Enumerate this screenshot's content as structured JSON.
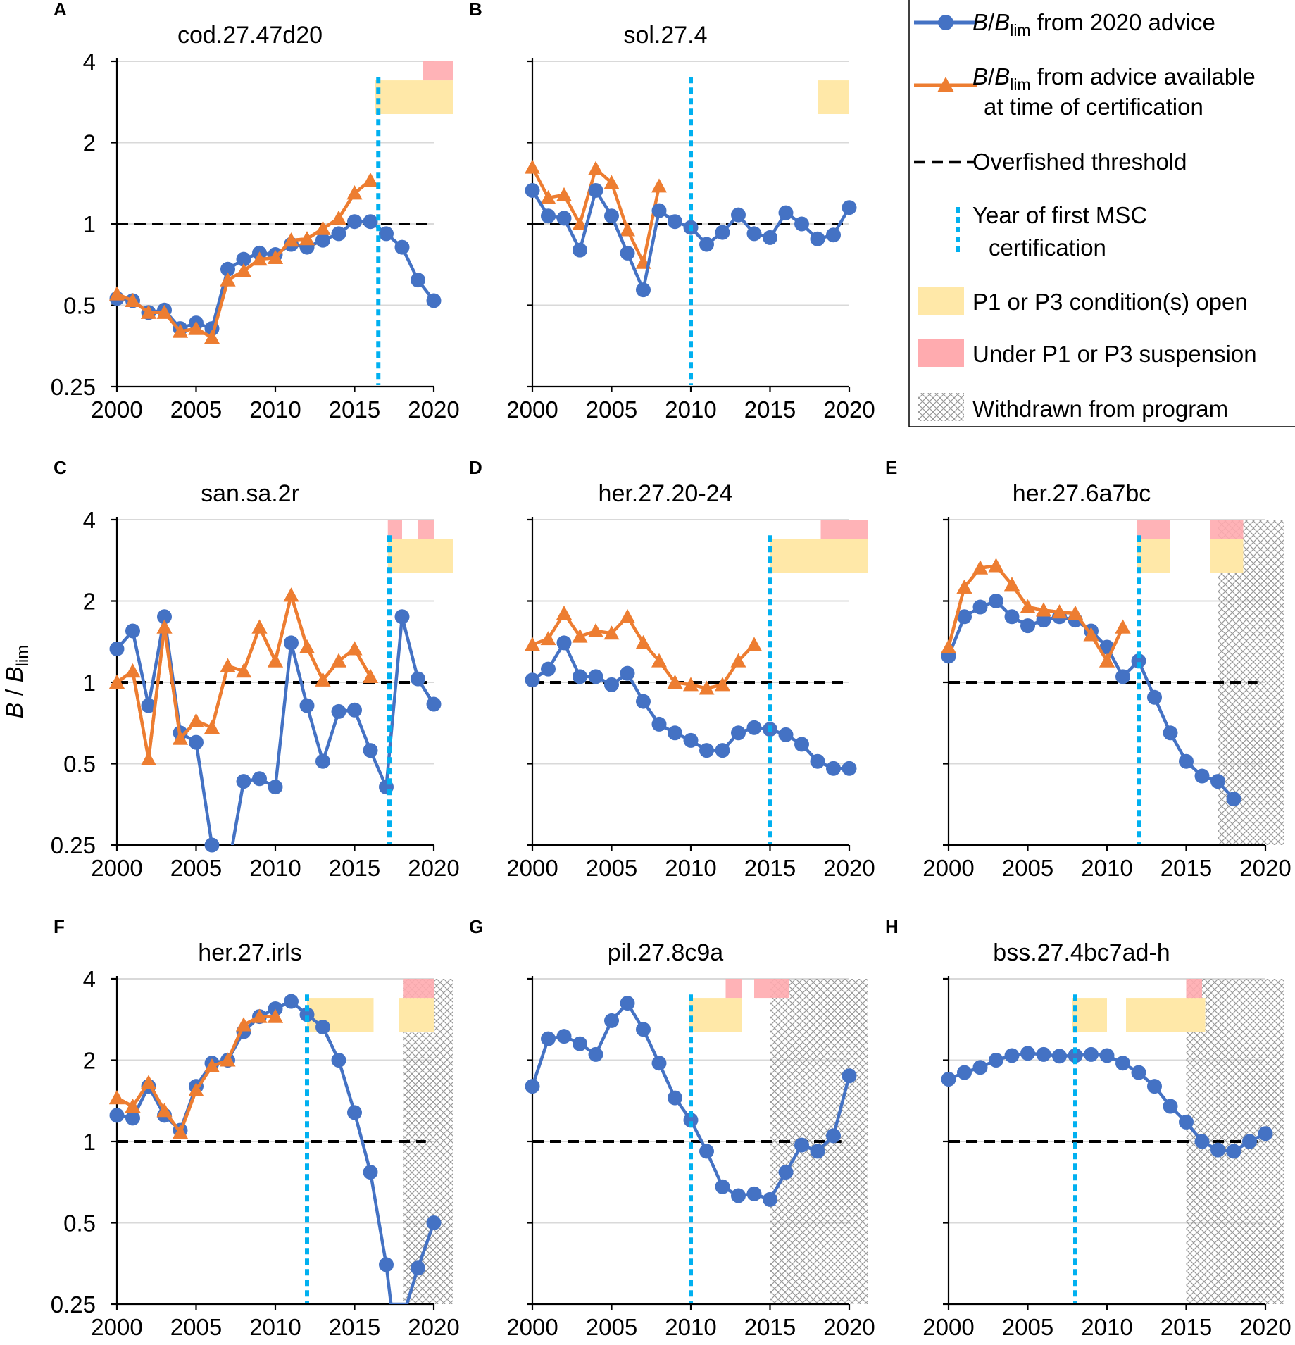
{
  "figure": {
    "y_axis_label_main": "B",
    "y_axis_label_sep": " / ",
    "y_axis_label_b": "B",
    "y_axis_label_sub": "lim"
  },
  "colors": {
    "series_2020": "#4472C4",
    "series_cert": "#ED7D31",
    "threshold": "#000000",
    "cert_year": "#00B0F0",
    "p1p3_open": "#FFE8A8",
    "suspension": "#FFABAF",
    "withdrawn": "#9A9A9A",
    "grid": "#D9D9D9"
  },
  "legend": {
    "item1": {
      "b": "B",
      "sep": "/",
      "b2": "B",
      "sub": "lim",
      "rest": " from 2020 advice"
    },
    "item2": {
      "b": "B",
      "sep": "/",
      "b2": "B",
      "sub": "lim",
      "rest": " from advice available",
      "line2": "at time of certification"
    },
    "item3": {
      "label": "Overfished threshold"
    },
    "item4": {
      "line1": "Year of first MSC",
      "line2": "certification"
    },
    "item5": {
      "label": "P1 or P3 condition(s) open"
    },
    "item6": {
      "label": "Under P1 or P3 suspension"
    },
    "item7": {
      "label": "Withdrawn from program"
    }
  },
  "chart_data": [
    {
      "type": "line",
      "letter": "A",
      "title": "cod.27.47d20",
      "xlim": [
        2000,
        2020
      ],
      "ylim": [
        0.25,
        4
      ],
      "yscale": "log2",
      "xticks": [
        "2000",
        "2005",
        "2010",
        "2015",
        "2020"
      ],
      "yticks": [
        "0.25",
        "0.5",
        "1",
        "2",
        "4"
      ],
      "show_ytick_labels": true,
      "threshold": 1,
      "threshold_x": [
        2000,
        2020
      ],
      "cert_year": 2016.5,
      "series": [
        {
          "name": "B/Blim from 2020 advice",
          "x": [
            2000,
            2001,
            2002,
            2003,
            2004,
            2005,
            2006,
            2007,
            2008,
            2009,
            2010,
            2011,
            2012,
            2013,
            2014,
            2015,
            2016,
            2017,
            2018,
            2019,
            2020
          ],
          "values": [
            0.53,
            0.52,
            0.47,
            0.48,
            0.41,
            0.43,
            0.41,
            0.68,
            0.74,
            0.78,
            0.77,
            0.84,
            0.82,
            0.87,
            0.92,
            1.02,
            1.02,
            0.92,
            0.82,
            0.62,
            0.52
          ]
        },
        {
          "name": "B/Blim from advice available at time of certification",
          "x": [
            2000,
            2001,
            2002,
            2003,
            2004,
            2005,
            2006,
            2007,
            2008,
            2009,
            2010,
            2011,
            2012,
            2013,
            2014,
            2015,
            2016
          ],
          "values": [
            0.55,
            0.52,
            0.47,
            0.47,
            0.4,
            0.41,
            0.38,
            0.62,
            0.67,
            0.74,
            0.75,
            0.87,
            0.88,
            0.96,
            1.05,
            1.3,
            1.45
          ]
        }
      ],
      "conditions": [
        [
          2016.3,
          2021.2
        ]
      ],
      "suspensions": [
        [
          2019.3,
          2021.2
        ]
      ],
      "withdrawn": []
    },
    {
      "type": "line",
      "letter": "B",
      "title": "sol.27.4",
      "xlim": [
        2000,
        2020
      ],
      "ylim": [
        0.25,
        4
      ],
      "yscale": "log2",
      "xticks": [
        "2000",
        "2005",
        "2010",
        "2015",
        "2020"
      ],
      "yticks": [
        "0.25",
        "0.5",
        "1",
        "2",
        "4"
      ],
      "show_ytick_labels": false,
      "threshold": 1,
      "threshold_x": [
        2000,
        2020
      ],
      "cert_year": 2010,
      "series": [
        {
          "name": "B/Blim from 2020 advice",
          "x": [
            2000,
            2001,
            2002,
            2003,
            2004,
            2005,
            2006,
            2007,
            2008,
            2009,
            2010,
            2011,
            2012,
            2013,
            2014,
            2015,
            2016,
            2017,
            2018,
            2019,
            2020
          ],
          "values": [
            1.33,
            1.07,
            1.05,
            0.8,
            1.33,
            1.07,
            0.78,
            0.57,
            1.12,
            1.02,
            0.97,
            0.84,
            0.93,
            1.08,
            0.92,
            0.89,
            1.1,
            1.0,
            0.88,
            0.91,
            1.15
          ]
        },
        {
          "name": "B/Blim from advice available at time of certification",
          "x": [
            2000,
            2001,
            2002,
            2003,
            2004,
            2005,
            2006,
            2007,
            2008
          ],
          "values": [
            1.62,
            1.25,
            1.28,
            1.0,
            1.6,
            1.42,
            0.95,
            0.72,
            1.38
          ]
        }
      ],
      "conditions": [
        [
          2018,
          2020
        ]
      ],
      "suspensions": [],
      "withdrawn": []
    },
    {
      "type": "line",
      "letter": "C",
      "title": "san.sa.2r",
      "xlim": [
        2000,
        2020
      ],
      "ylim": [
        0.25,
        4
      ],
      "yscale": "log2",
      "xticks": [
        "2000",
        "2005",
        "2010",
        "2015",
        "2020"
      ],
      "yticks": [
        "0.25",
        "0.5",
        "1",
        "2",
        "4"
      ],
      "show_ytick_labels": true,
      "threshold": 1,
      "threshold_x": [
        2000,
        2020
      ],
      "cert_year": 2017.2,
      "series": [
        {
          "name": "B/Blim from 2020 advice",
          "x": [
            2000,
            2001,
            2002,
            2003,
            2004,
            2005,
            2006,
            2007,
            2008,
            2009,
            2010,
            2011,
            2012,
            2013,
            2014,
            2015,
            2016,
            2017,
            2018,
            2019,
            2020
          ],
          "values": [
            1.33,
            1.55,
            0.82,
            1.75,
            0.65,
            0.6,
            0.25,
            0.2,
            0.43,
            0.44,
            0.41,
            1.4,
            0.82,
            0.51,
            0.78,
            0.79,
            0.56,
            0.41,
            1.75,
            1.03,
            0.83
          ]
        },
        {
          "name": "B/Blim from advice available at time of certification",
          "x": [
            2000,
            2001,
            2002,
            2003,
            2004,
            2005,
            2006,
            2007,
            2008,
            2009,
            2010,
            2011,
            2012,
            2013,
            2014,
            2015,
            2016
          ],
          "values": [
            1.0,
            1.1,
            0.52,
            1.6,
            0.62,
            0.72,
            0.68,
            1.15,
            1.1,
            1.6,
            1.2,
            2.1,
            1.35,
            1.02,
            1.2,
            1.33,
            1.05
          ]
        }
      ],
      "conditions": [
        [
          2017.1,
          2021.2
        ]
      ],
      "suspensions": [
        [
          2017.1,
          2018
        ],
        [
          2019,
          2020
        ]
      ],
      "withdrawn": []
    },
    {
      "type": "line",
      "letter": "D",
      "title": "her.27.20-24",
      "xlim": [
        2000,
        2020
      ],
      "ylim": [
        0.25,
        4
      ],
      "yscale": "log2",
      "xticks": [
        "2000",
        "2005",
        "2010",
        "2015",
        "2020"
      ],
      "yticks": [
        "0.25",
        "0.5",
        "1",
        "2",
        "4"
      ],
      "show_ytick_labels": false,
      "threshold": 1,
      "threshold_x": [
        2000,
        2020
      ],
      "cert_year": 2015,
      "series": [
        {
          "name": "B/Blim from 2020 advice",
          "x": [
            2000,
            2001,
            2002,
            2003,
            2004,
            2005,
            2006,
            2007,
            2008,
            2009,
            2010,
            2011,
            2012,
            2013,
            2014,
            2015,
            2016,
            2017,
            2018,
            2019,
            2020
          ],
          "values": [
            1.02,
            1.12,
            1.4,
            1.05,
            1.05,
            0.98,
            1.08,
            0.85,
            0.7,
            0.65,
            0.61,
            0.56,
            0.56,
            0.65,
            0.68,
            0.67,
            0.64,
            0.59,
            0.51,
            0.48,
            0.48
          ]
        },
        {
          "name": "B/Blim from advice available at time of certification",
          "x": [
            2000,
            2001,
            2002,
            2003,
            2004,
            2005,
            2006,
            2007,
            2008,
            2009,
            2010,
            2011,
            2012,
            2013,
            2014
          ],
          "values": [
            1.38,
            1.45,
            1.8,
            1.48,
            1.55,
            1.52,
            1.75,
            1.4,
            1.2,
            1.0,
            0.98,
            0.95,
            0.98,
            1.2,
            1.38
          ]
        }
      ],
      "conditions": [
        [
          2015,
          2021.2
        ]
      ],
      "suspensions": [
        [
          2018.2,
          2021.2
        ]
      ],
      "withdrawn": []
    },
    {
      "type": "line",
      "letter": "E",
      "title": "her.27.6a7bc",
      "xlim": [
        2000,
        2020
      ],
      "ylim": [
        0.25,
        4
      ],
      "yscale": "log2",
      "xticks": [
        "2000",
        "2005",
        "2010",
        "2015",
        "2020"
      ],
      "yticks": [
        "0.25",
        "0.5",
        "1",
        "2",
        "4"
      ],
      "show_ytick_labels": false,
      "threshold": 1,
      "threshold_x": [
        2000,
        2019.5
      ],
      "cert_year": 2012,
      "series": [
        {
          "name": "B/Blim from 2020 advice",
          "x": [
            2000,
            2001,
            2002,
            2003,
            2004,
            2005,
            2006,
            2007,
            2008,
            2009,
            2010,
            2011,
            2012,
            2013,
            2014,
            2015,
            2016,
            2017,
            2018
          ],
          "values": [
            1.25,
            1.75,
            1.9,
            2.0,
            1.75,
            1.62,
            1.7,
            1.75,
            1.7,
            1.55,
            1.35,
            1.05,
            1.2,
            0.88,
            0.65,
            0.51,
            0.45,
            0.43,
            0.37
          ]
        },
        {
          "name": "B/Blim from advice available at time of certification",
          "x": [
            2000,
            2001,
            2002,
            2003,
            2004,
            2005,
            2006,
            2007,
            2008,
            2009,
            2010,
            2011
          ],
          "values": [
            1.35,
            2.25,
            2.65,
            2.7,
            2.3,
            1.9,
            1.85,
            1.82,
            1.8,
            1.5,
            1.2,
            1.6
          ]
        }
      ],
      "conditions": [
        [
          2011.9,
          2014
        ],
        [
          2016.5,
          2018.6
        ]
      ],
      "suspensions": [
        [
          2011.9,
          2014
        ],
        [
          2016.5,
          2018.6
        ]
      ],
      "withdrawn": [
        [
          2017,
          2021.2
        ]
      ]
    },
    {
      "type": "line",
      "letter": "F",
      "title": "her.27.irls",
      "xlim": [
        2000,
        2020
      ],
      "ylim": [
        0.25,
        4
      ],
      "yscale": "log2",
      "xticks": [
        "2000",
        "2005",
        "2010",
        "2015",
        "2020"
      ],
      "yticks": [
        "0.25",
        "0.5",
        "1",
        "2",
        "4"
      ],
      "show_ytick_labels": true,
      "threshold": 1,
      "threshold_x": [
        2000,
        2019.5
      ],
      "cert_year": 2012,
      "series": [
        {
          "name": "B/Blim from 2020 advice",
          "x": [
            2000,
            2001,
            2002,
            2003,
            2004,
            2005,
            2006,
            2007,
            2008,
            2009,
            2010,
            2011,
            2012,
            2013,
            2014,
            2015,
            2016,
            2017,
            2017.3,
            2018.3,
            2019,
            2020
          ],
          "values": [
            1.25,
            1.22,
            1.6,
            1.25,
            1.1,
            1.6,
            1.95,
            2.0,
            2.55,
            2.9,
            3.1,
            3.3,
            2.95,
            2.65,
            2.0,
            1.28,
            0.77,
            0.35,
            0.25,
            0.25,
            0.34,
            0.5
          ]
        },
        {
          "name": "B/Blim from advice available at time of certification",
          "x": [
            2000,
            2001,
            2002,
            2003,
            2004,
            2005,
            2006,
            2007,
            2008,
            2009,
            2010
          ],
          "values": [
            1.45,
            1.35,
            1.65,
            1.3,
            1.08,
            1.55,
            1.9,
            2.0,
            2.7,
            2.9,
            2.9
          ]
        }
      ],
      "conditions": [
        [
          2012,
          2016.2
        ],
        [
          2017.8,
          2020
        ]
      ],
      "suspensions": [
        [
          2018.1,
          2020
        ]
      ],
      "withdrawn": [
        [
          2018.1,
          2021.2
        ]
      ]
    },
    {
      "type": "line",
      "letter": "G",
      "title": "pil.27.8c9a",
      "xlim": [
        2000,
        2020
      ],
      "ylim": [
        0.25,
        4
      ],
      "yscale": "log2",
      "xticks": [
        "2000",
        "2005",
        "2010",
        "2015",
        "2020"
      ],
      "yticks": [
        "0.25",
        "0.5",
        "1",
        "2",
        "4"
      ],
      "show_ytick_labels": false,
      "threshold": 1,
      "threshold_x": [
        2000,
        2019.5
      ],
      "cert_year": 2010,
      "series": [
        {
          "name": "B/Blim from 2020 advice",
          "x": [
            2000,
            2001,
            2002,
            2003,
            2004,
            2005,
            2006,
            2007,
            2008,
            2009,
            2010,
            2011,
            2012,
            2013,
            2014,
            2015,
            2016,
            2017,
            2018,
            2019,
            2020
          ],
          "values": [
            1.6,
            2.4,
            2.45,
            2.3,
            2.1,
            2.8,
            3.25,
            2.6,
            1.95,
            1.45,
            1.2,
            0.92,
            0.68,
            0.63,
            0.64,
            0.61,
            0.77,
            0.97,
            0.92,
            1.05,
            1.75
          ]
        },
        {
          "name": "B/Blim from advice available at time of certification",
          "x": [],
          "values": []
        }
      ],
      "conditions": [
        [
          2009.9,
          2013.2
        ]
      ],
      "suspensions": [
        [
          2012.2,
          2013.2
        ],
        [
          2014,
          2016.2
        ]
      ],
      "withdrawn": [
        [
          2015,
          2021.2
        ]
      ]
    },
    {
      "type": "line",
      "letter": "H",
      "title": "bss.27.4bc7ad-h",
      "xlim": [
        2000,
        2020
      ],
      "ylim": [
        0.25,
        4
      ],
      "yscale": "log2",
      "xticks": [
        "2000",
        "2005",
        "2010",
        "2015",
        "2020"
      ],
      "yticks": [
        "0.25",
        "0.5",
        "1",
        "2",
        "4"
      ],
      "show_ytick_labels": false,
      "threshold": 1,
      "threshold_x": [
        2000,
        2019.5
      ],
      "cert_year": 2008,
      "series": [
        {
          "name": "B/Blim from 2020 advice",
          "x": [
            2000,
            2001,
            2002,
            2003,
            2004,
            2005,
            2006,
            2007,
            2008,
            2009,
            2010,
            2011,
            2012,
            2013,
            2014,
            2015,
            2016,
            2017,
            2018,
            2019,
            2020
          ],
          "values": [
            1.7,
            1.8,
            1.88,
            2.0,
            2.08,
            2.12,
            2.1,
            2.07,
            2.08,
            2.1,
            2.08,
            1.95,
            1.8,
            1.6,
            1.35,
            1.18,
            1.0,
            0.93,
            0.92,
            1.0,
            1.07
          ]
        },
        {
          "name": "B/Blim from advice available at time of certification",
          "x": [],
          "values": []
        }
      ],
      "conditions": [
        [
          2007.8,
          2010
        ],
        [
          2011.2,
          2016.2
        ]
      ],
      "suspensions": [
        [
          2015,
          2016
        ]
      ],
      "withdrawn": [
        [
          2015,
          2021.2
        ]
      ]
    }
  ]
}
